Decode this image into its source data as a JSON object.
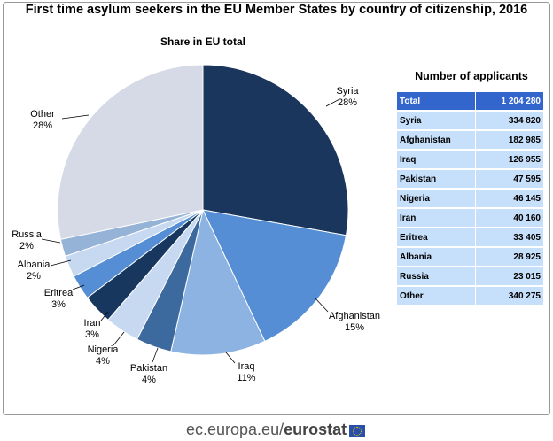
{
  "title": "First time asylum seekers in the EU Member States by country of citizenship, 2016",
  "footer": {
    "site": "ec.europa.eu/",
    "brand": "eurostat"
  },
  "chart_data": {
    "type": "pie",
    "title": "Share in EU total",
    "categories": [
      "Syria",
      "Afghanistan",
      "Iraq",
      "Pakistan",
      "Nigeria",
      "Iran",
      "Eritrea",
      "Albania",
      "Russia",
      "Other"
    ],
    "values": [
      334820,
      182985,
      126955,
      47595,
      46145,
      40160,
      33405,
      28925,
      23015,
      340275
    ],
    "labels": [
      "28%",
      "15%",
      "11%",
      "4%",
      "4%",
      "3%",
      "3%",
      "2%",
      "2%",
      "28%"
    ],
    "colors": [
      "#1b365d",
      "#558ed5",
      "#8db3e2",
      "#3d6a9e",
      "#c6d9f1",
      "#17375e",
      "#558ed5",
      "#c6d9f1",
      "#95b3d7",
      "#d5dae6"
    ],
    "start": "top",
    "direction": "clockwise"
  },
  "table": {
    "title": "Number of applicants",
    "total": {
      "name": "Total",
      "value": "1 204 280"
    },
    "rows": [
      {
        "name": "Syria",
        "value": "334 820"
      },
      {
        "name": "Afghanistan",
        "value": "182 985"
      },
      {
        "name": "Iraq",
        "value": "126 955"
      },
      {
        "name": "Pakistan",
        "value": "47 595"
      },
      {
        "name": "Nigeria",
        "value": "46 145"
      },
      {
        "name": "Iran",
        "value": "40 160"
      },
      {
        "name": "Eritrea",
        "value": "33 405"
      },
      {
        "name": "Albania",
        "value": "28 925"
      },
      {
        "name": "Russia",
        "value": "23 015"
      },
      {
        "name": "Other",
        "value": "340 275"
      }
    ]
  }
}
